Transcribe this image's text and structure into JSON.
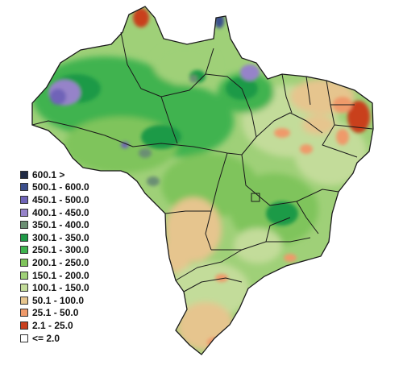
{
  "legend": {
    "entries": [
      {
        "label": "600.1 >",
        "color": "#1f2a44"
      },
      {
        "label": "500.1 - 600.0",
        "color": "#3b4f8c"
      },
      {
        "label": "450.1 - 500.0",
        "color": "#6f64b8"
      },
      {
        "label": "400.1 - 450.0",
        "color": "#9683c9"
      },
      {
        "label": "350.1 - 400.0",
        "color": "#6b8f73"
      },
      {
        "label": "300.1 - 350.0",
        "color": "#1f9a47"
      },
      {
        "label": "250.1 - 300.0",
        "color": "#3fb34f"
      },
      {
        "label": "200.1 - 250.0",
        "color": "#7fc45b"
      },
      {
        "label": "150.1 - 200.0",
        "color": "#9fd078"
      },
      {
        "label": "100.1 - 150.0",
        "color": "#c3dc9a"
      },
      {
        "label": "50.1 - 100.0",
        "color": "#e6c58e"
      },
      {
        "label": "25.1 - 50.0",
        "color": "#ef9a6b"
      },
      {
        "label": "2.1 - 25.0",
        "color": "#c9401f"
      },
      {
        "label": "<= 2.0",
        "color": "#ffffff"
      }
    ]
  }
}
